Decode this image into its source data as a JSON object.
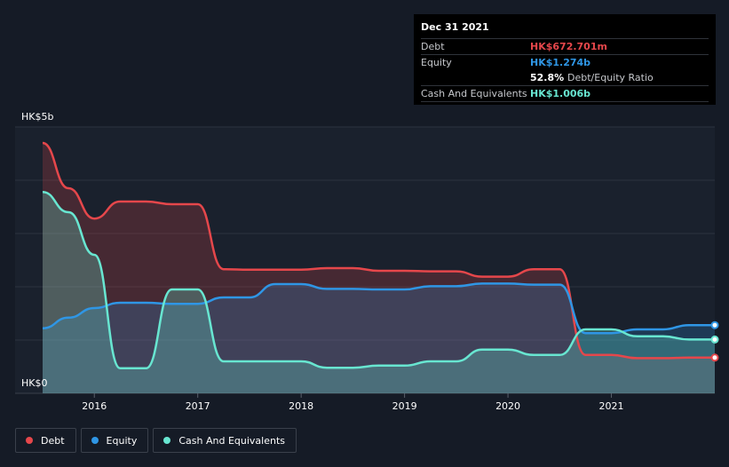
{
  "tooltip": {
    "date": "Dec 31 2021",
    "rows": [
      {
        "label": "Debt",
        "value": "HK$672.701m",
        "color": "#e5474b"
      },
      {
        "label": "Equity",
        "value": "HK$1.274b",
        "color": "#2f96e5"
      },
      {
        "label": "",
        "value": "52.8%",
        "suffix": "Debt/Equity Ratio",
        "color": "#ffffff"
      },
      {
        "label": "Cash And Equivalents",
        "value": "HK$1.006b",
        "color": "#68e6d1"
      }
    ]
  },
  "legend": [
    {
      "label": "Debt",
      "color": "#e5474b"
    },
    {
      "label": "Equity",
      "color": "#2f96e5"
    },
    {
      "label": "Cash And Equivalents",
      "color": "#68e6d1"
    }
  ],
  "chart_data": {
    "type": "area",
    "y_top_label": "HK$5b",
    "y_bottom_label": "HK$0",
    "ylim": [
      0,
      5
    ],
    "xlim": [
      2015.5,
      2022.0
    ],
    "x_ticks": [
      {
        "value": 2016,
        "label": "2016"
      },
      {
        "value": 2017,
        "label": "2017"
      },
      {
        "value": 2018,
        "label": "2018"
      },
      {
        "value": 2019,
        "label": "2019"
      },
      {
        "value": 2020,
        "label": "2020"
      },
      {
        "value": 2021,
        "label": "2021"
      }
    ],
    "grid": true,
    "legend_position": "bottom-left",
    "series": [
      {
        "name": "Debt",
        "color": "#e5474b",
        "points": [
          [
            2015.5,
            4.7
          ],
          [
            2015.75,
            3.85
          ],
          [
            2016.0,
            3.28
          ],
          [
            2016.25,
            3.6
          ],
          [
            2016.5,
            3.6
          ],
          [
            2016.75,
            3.55
          ],
          [
            2017.0,
            3.55
          ],
          [
            2017.25,
            2.33
          ],
          [
            2017.5,
            2.32
          ],
          [
            2017.75,
            2.32
          ],
          [
            2018.0,
            2.32
          ],
          [
            2018.25,
            2.35
          ],
          [
            2018.5,
            2.35
          ],
          [
            2018.75,
            2.3
          ],
          [
            2019.0,
            2.3
          ],
          [
            2019.25,
            2.29
          ],
          [
            2019.5,
            2.29
          ],
          [
            2019.75,
            2.19
          ],
          [
            2020.0,
            2.19
          ],
          [
            2020.25,
            2.33
          ],
          [
            2020.5,
            2.33
          ],
          [
            2020.75,
            0.72
          ],
          [
            2021.0,
            0.72
          ],
          [
            2021.25,
            0.66
          ],
          [
            2021.5,
            0.66
          ],
          [
            2021.75,
            0.67
          ],
          [
            2022.0,
            0.67
          ]
        ]
      },
      {
        "name": "Equity",
        "color": "#2f96e5",
        "points": [
          [
            2015.5,
            1.22
          ],
          [
            2015.75,
            1.42
          ],
          [
            2016.0,
            1.6
          ],
          [
            2016.25,
            1.7
          ],
          [
            2016.5,
            1.7
          ],
          [
            2016.75,
            1.68
          ],
          [
            2017.0,
            1.68
          ],
          [
            2017.25,
            1.8
          ],
          [
            2017.5,
            1.8
          ],
          [
            2017.75,
            2.05
          ],
          [
            2018.0,
            2.05
          ],
          [
            2018.25,
            1.96
          ],
          [
            2018.5,
            1.96
          ],
          [
            2018.75,
            1.95
          ],
          [
            2019.0,
            1.95
          ],
          [
            2019.25,
            2.01
          ],
          [
            2019.5,
            2.01
          ],
          [
            2019.75,
            2.06
          ],
          [
            2020.0,
            2.06
          ],
          [
            2020.25,
            2.04
          ],
          [
            2020.5,
            2.04
          ],
          [
            2020.75,
            1.13
          ],
          [
            2021.0,
            1.13
          ],
          [
            2021.25,
            1.2
          ],
          [
            2021.5,
            1.2
          ],
          [
            2021.75,
            1.28
          ],
          [
            2022.0,
            1.28
          ]
        ]
      },
      {
        "name": "Cash And Equivalents",
        "color": "#68e6d1",
        "points": [
          [
            2015.5,
            3.78
          ],
          [
            2015.75,
            3.4
          ],
          [
            2016.0,
            2.6
          ],
          [
            2016.25,
            0.47
          ],
          [
            2016.5,
            0.47
          ],
          [
            2016.75,
            1.95
          ],
          [
            2017.0,
            1.95
          ],
          [
            2017.25,
            0.6
          ],
          [
            2017.5,
            0.6
          ],
          [
            2017.75,
            0.6
          ],
          [
            2018.0,
            0.6
          ],
          [
            2018.25,
            0.48
          ],
          [
            2018.5,
            0.48
          ],
          [
            2018.75,
            0.52
          ],
          [
            2019.0,
            0.52
          ],
          [
            2019.25,
            0.6
          ],
          [
            2019.5,
            0.6
          ],
          [
            2019.75,
            0.82
          ],
          [
            2020.0,
            0.82
          ],
          [
            2020.25,
            0.72
          ],
          [
            2020.5,
            0.72
          ],
          [
            2020.75,
            1.2
          ],
          [
            2021.0,
            1.2
          ],
          [
            2021.25,
            1.07
          ],
          [
            2021.5,
            1.07
          ],
          [
            2021.75,
            1.01
          ],
          [
            2022.0,
            1.01
          ]
        ]
      }
    ]
  }
}
